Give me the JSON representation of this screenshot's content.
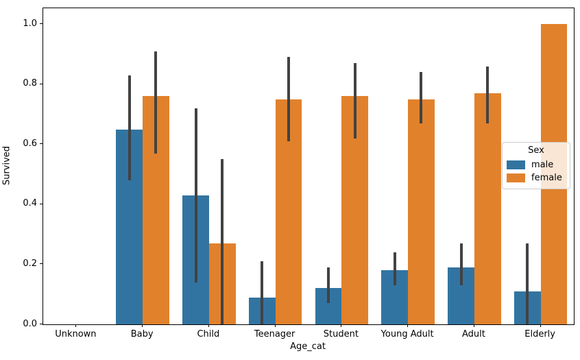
{
  "chart_data": {
    "type": "bar",
    "title": "",
    "xlabel": "Age_cat",
    "ylabel": "Survived",
    "categories": [
      "Unknown",
      "Baby",
      "Child",
      "Teenager",
      "Student",
      "Young Adult",
      "Adult",
      "Elderly"
    ],
    "series": [
      {
        "name": "male",
        "color": "#3274a1",
        "values": [
          0,
          0.65,
          0.43,
          0.09,
          0.12,
          0.18,
          0.19,
          0.11
        ],
        "ci": [
          null,
          [
            0.48,
            0.83
          ],
          [
            0.14,
            0.72
          ],
          [
            0.0,
            0.21
          ],
          [
            0.07,
            0.19
          ],
          [
            0.13,
            0.24
          ],
          [
            0.13,
            0.27
          ],
          [
            0.0,
            0.27
          ]
        ]
      },
      {
        "name": "female",
        "color": "#e1812c",
        "values": [
          0,
          0.76,
          0.27,
          0.75,
          0.76,
          0.75,
          0.77,
          1.0
        ],
        "ci": [
          null,
          [
            0.57,
            0.91
          ],
          [
            0.0,
            0.55
          ],
          [
            0.61,
            0.89
          ],
          [
            0.62,
            0.87
          ],
          [
            0.67,
            0.84
          ],
          [
            0.67,
            0.86
          ],
          null
        ]
      }
    ],
    "yticks": [
      "0.0",
      "0.2",
      "0.4",
      "0.6",
      "0.8",
      "1.0"
    ],
    "ylim": [
      0,
      1.05
    ],
    "grid": false,
    "legend": {
      "title": "Sex",
      "position": "center right",
      "entries": [
        "male",
        "female"
      ]
    },
    "error_bar_color": "#424242",
    "spine_color": "#000000"
  }
}
